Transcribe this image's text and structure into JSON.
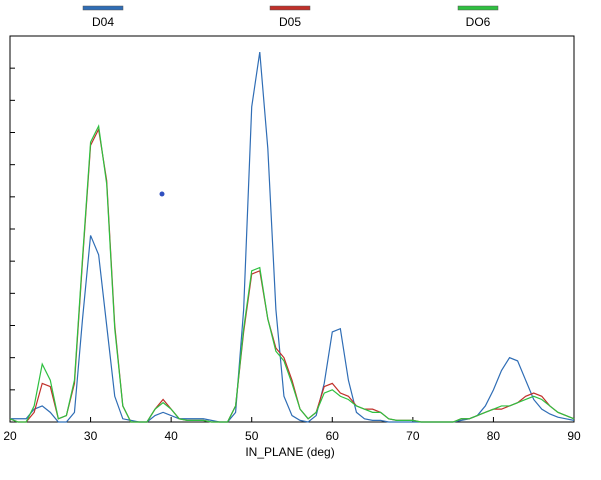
{
  "chart_data": {
    "type": "line",
    "xlabel": "IN_PLANE  (deg)",
    "x": [
      20,
      21,
      22,
      23,
      24,
      25,
      26,
      27,
      28,
      29,
      30,
      31,
      32,
      33,
      34,
      35,
      36,
      37,
      38,
      39,
      40,
      41,
      42,
      43,
      44,
      45,
      46,
      47,
      48,
      49,
      50,
      51,
      52,
      53,
      54,
      55,
      56,
      57,
      58,
      59,
      60,
      61,
      62,
      63,
      64,
      65,
      66,
      67,
      68,
      69,
      70,
      71,
      72,
      73,
      74,
      75,
      76,
      77,
      78,
      79,
      80,
      81,
      82,
      83,
      84,
      85,
      86,
      87,
      88,
      89,
      90
    ],
    "series": [
      {
        "name": "D04",
        "color": "#2f6db5",
        "values": [
          0.1,
          0.1,
          0.1,
          0.4,
          0.5,
          0.3,
          0,
          0,
          0.3,
          3.2,
          5.8,
          5.2,
          3.0,
          0.8,
          0.1,
          0.05,
          0,
          0,
          0.2,
          0.3,
          0.2,
          0.1,
          0.1,
          0.1,
          0.1,
          0.05,
          0,
          0,
          0.3,
          3.5,
          9.8,
          11.5,
          8.5,
          3.5,
          0.8,
          0.2,
          0.05,
          0,
          0.2,
          1.2,
          2.8,
          2.9,
          1.3,
          0.3,
          0.1,
          0.05,
          0.05,
          0,
          0,
          0,
          0,
          0,
          0,
          0,
          0,
          0,
          0.05,
          0.1,
          0.2,
          0.5,
          1.0,
          1.6,
          2.0,
          1.9,
          1.3,
          0.7,
          0.4,
          0.25,
          0.15,
          0.1,
          0.05
        ]
      },
      {
        "name": "D05",
        "color": "#c0302a",
        "values": [
          0.1,
          0,
          0,
          0.3,
          1.2,
          1.1,
          0.1,
          0.2,
          1.2,
          5.0,
          8.6,
          9.1,
          7.5,
          3.0,
          0.5,
          0,
          0,
          0,
          0.4,
          0.7,
          0.4,
          0.1,
          0.05,
          0.05,
          0.05,
          0,
          0,
          0,
          0.5,
          2.8,
          4.6,
          4.7,
          3.2,
          2.3,
          2.0,
          1.3,
          0.4,
          0.1,
          0.3,
          1.1,
          1.2,
          0.9,
          0.8,
          0.5,
          0.4,
          0.4,
          0.3,
          0.1,
          0.05,
          0.05,
          0.05,
          0,
          0,
          0,
          0,
          0,
          0.1,
          0.1,
          0.2,
          0.3,
          0.4,
          0.4,
          0.5,
          0.6,
          0.8,
          0.9,
          0.8,
          0.5,
          0.3,
          0.2,
          0.1
        ]
      },
      {
        "name": "DO6",
        "color": "#2ec040",
        "values": [
          0.1,
          0,
          0,
          0.5,
          1.8,
          1.3,
          0.1,
          0.2,
          1.3,
          5.1,
          8.7,
          9.2,
          7.4,
          2.9,
          0.5,
          0,
          0,
          0,
          0.4,
          0.6,
          0.4,
          0.1,
          0.05,
          0.05,
          0.05,
          0,
          0,
          0,
          0.5,
          2.9,
          4.7,
          4.8,
          3.2,
          2.2,
          1.9,
          1.2,
          0.4,
          0.1,
          0.3,
          0.9,
          1.0,
          0.8,
          0.7,
          0.5,
          0.4,
          0.3,
          0.3,
          0.1,
          0.05,
          0.05,
          0.05,
          0,
          0,
          0,
          0,
          0,
          0.1,
          0.1,
          0.2,
          0.3,
          0.4,
          0.5,
          0.5,
          0.6,
          0.7,
          0.8,
          0.7,
          0.5,
          0.3,
          0.2,
          0.1
        ]
      }
    ],
    "xlim": [
      20,
      90
    ],
    "xticks": [
      20,
      30,
      40,
      50,
      60,
      70,
      80,
      90
    ],
    "ylim": [
      0,
      12
    ],
    "yticks": [
      0,
      1,
      2,
      3,
      4,
      5,
      6,
      7,
      8,
      9,
      10,
      11,
      12
    ]
  }
}
